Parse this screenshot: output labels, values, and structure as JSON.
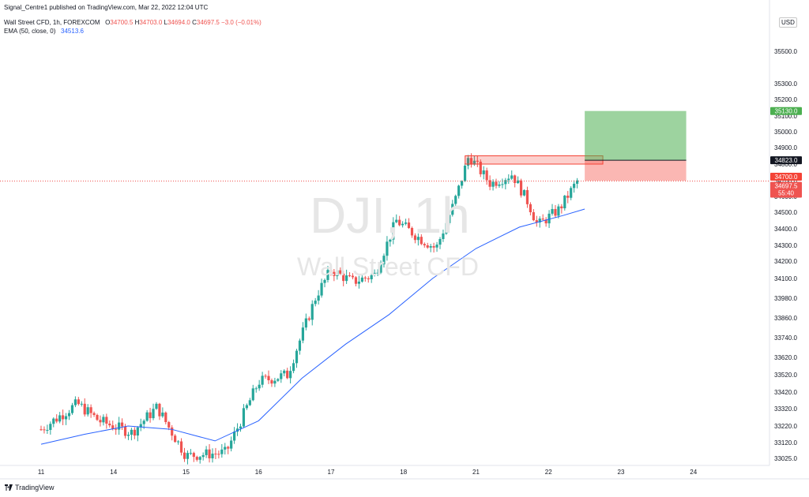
{
  "header": {
    "published": "Signal_Centre1 published on TradingView.com, Mar 22, 2022 12:04 UTC",
    "symbol": "Wall Street CFD, 1h, FOREXCOM",
    "ohlc": [
      {
        "label": "O",
        "value": "34700.5"
      },
      {
        "label": "H",
        "value": "34703.0"
      },
      {
        "label": "L",
        "value": "34694.0"
      },
      {
        "label": "C",
        "value": "34697.5"
      }
    ],
    "change": "−3.0 (−0.01%)",
    "ema_label": "EMA (50, close, 0)",
    "ema_value": "34513.6"
  },
  "watermark": {
    "symbol": "DJI, 1h",
    "name": "Wall Street CFD"
  },
  "currency": "USD",
  "footer": {
    "brand": "TradingView"
  },
  "colors": {
    "up": "#26a69a",
    "down": "#ef5350",
    "ema": "#2962ff",
    "target": "#4caf50",
    "stop": "#f44336"
  },
  "chart_data": {
    "type": "candlestick",
    "y_range": [
      33000,
      35900
    ],
    "y_ticks": [
      "35500.0",
      "35300.0",
      "35200.0",
      "35100.0",
      "35000.0",
      "34900.0",
      "34800.0",
      "34700.0",
      "34600.0",
      "34500.0",
      "34400.0",
      "34300.0",
      "34200.0",
      "34100.0",
      "33980.0",
      "33860.0",
      "33740.0",
      "33620.0",
      "33520.0",
      "33420.0",
      "33320.0",
      "33220.0",
      "33120.0",
      "33025.0"
    ],
    "x_ticks": [
      {
        "label": "11",
        "t": 0
      },
      {
        "label": "14",
        "t": 1
      },
      {
        "label": "15",
        "t": 2
      },
      {
        "label": "16",
        "t": 3
      },
      {
        "label": "17",
        "t": 4
      },
      {
        "label": "18",
        "t": 5
      },
      {
        "label": "21",
        "t": 6
      },
      {
        "label": "22",
        "t": 7
      },
      {
        "label": "23",
        "t": 8
      },
      {
        "label": "24",
        "t": 9
      }
    ],
    "price_labels": [
      {
        "value": 35130.0,
        "text": "35130.0",
        "role": "target"
      },
      {
        "value": 34823.0,
        "text": "34823.0",
        "role": "entry"
      },
      {
        "value": 34700.0,
        "text": "34700.0",
        "role": "stop"
      },
      {
        "value": 34697.5,
        "text": "34697.5",
        "role": "last",
        "countdown": "55:40"
      }
    ],
    "position": {
      "entry": 34823.0,
      "target": 35130.0,
      "stop": 34700.0
    },
    "resistance_zone": {
      "top": 34850,
      "bottom": 34800
    },
    "anchors": [
      {
        "t": 0,
        "p": 33200
      },
      {
        "t": 0.5,
        "p": 33350
      },
      {
        "t": 0.8,
        "p": 33250
      },
      {
        "t": 1.25,
        "p": 33180
      },
      {
        "t": 1.6,
        "p": 33330
      },
      {
        "t": 2,
        "p": 33040
      },
      {
        "t": 2.55,
        "p": 33060
      },
      {
        "t": 3,
        "p": 33480
      },
      {
        "t": 3.4,
        "p": 33520
      },
      {
        "t": 3.8,
        "p": 34000
      },
      {
        "t": 4,
        "p": 34150
      },
      {
        "t": 4.3,
        "p": 34080
      },
      {
        "t": 4.6,
        "p": 34120
      },
      {
        "t": 4.9,
        "p": 34450
      },
      {
        "t": 5.2,
        "p": 34350
      },
      {
        "t": 5.45,
        "p": 34280
      },
      {
        "t": 5.7,
        "p": 34560
      },
      {
        "t": 5.9,
        "p": 34850
      },
      {
        "t": 6.2,
        "p": 34680
      },
      {
        "t": 6.5,
        "p": 34740
      },
      {
        "t": 6.72,
        "p": 34560
      },
      {
        "t": 6.85,
        "p": 34420
      },
      {
        "t": 7.15,
        "p": 34520
      },
      {
        "t": 7.4,
        "p": 34700
      }
    ],
    "ema": [
      {
        "t": 0,
        "p": 33110
      },
      {
        "t": 0.6,
        "p": 33170
      },
      {
        "t": 1.2,
        "p": 33220
      },
      {
        "t": 1.8,
        "p": 33200
      },
      {
        "t": 2.4,
        "p": 33130
      },
      {
        "t": 3.0,
        "p": 33250
      },
      {
        "t": 3.6,
        "p": 33500
      },
      {
        "t": 4.2,
        "p": 33700
      },
      {
        "t": 4.8,
        "p": 33880
      },
      {
        "t": 5.4,
        "p": 34100
      },
      {
        "t": 6.0,
        "p": 34280
      },
      {
        "t": 6.6,
        "p": 34410
      },
      {
        "t": 7.2,
        "p": 34480
      },
      {
        "t": 7.5,
        "p": 34520
      }
    ]
  }
}
